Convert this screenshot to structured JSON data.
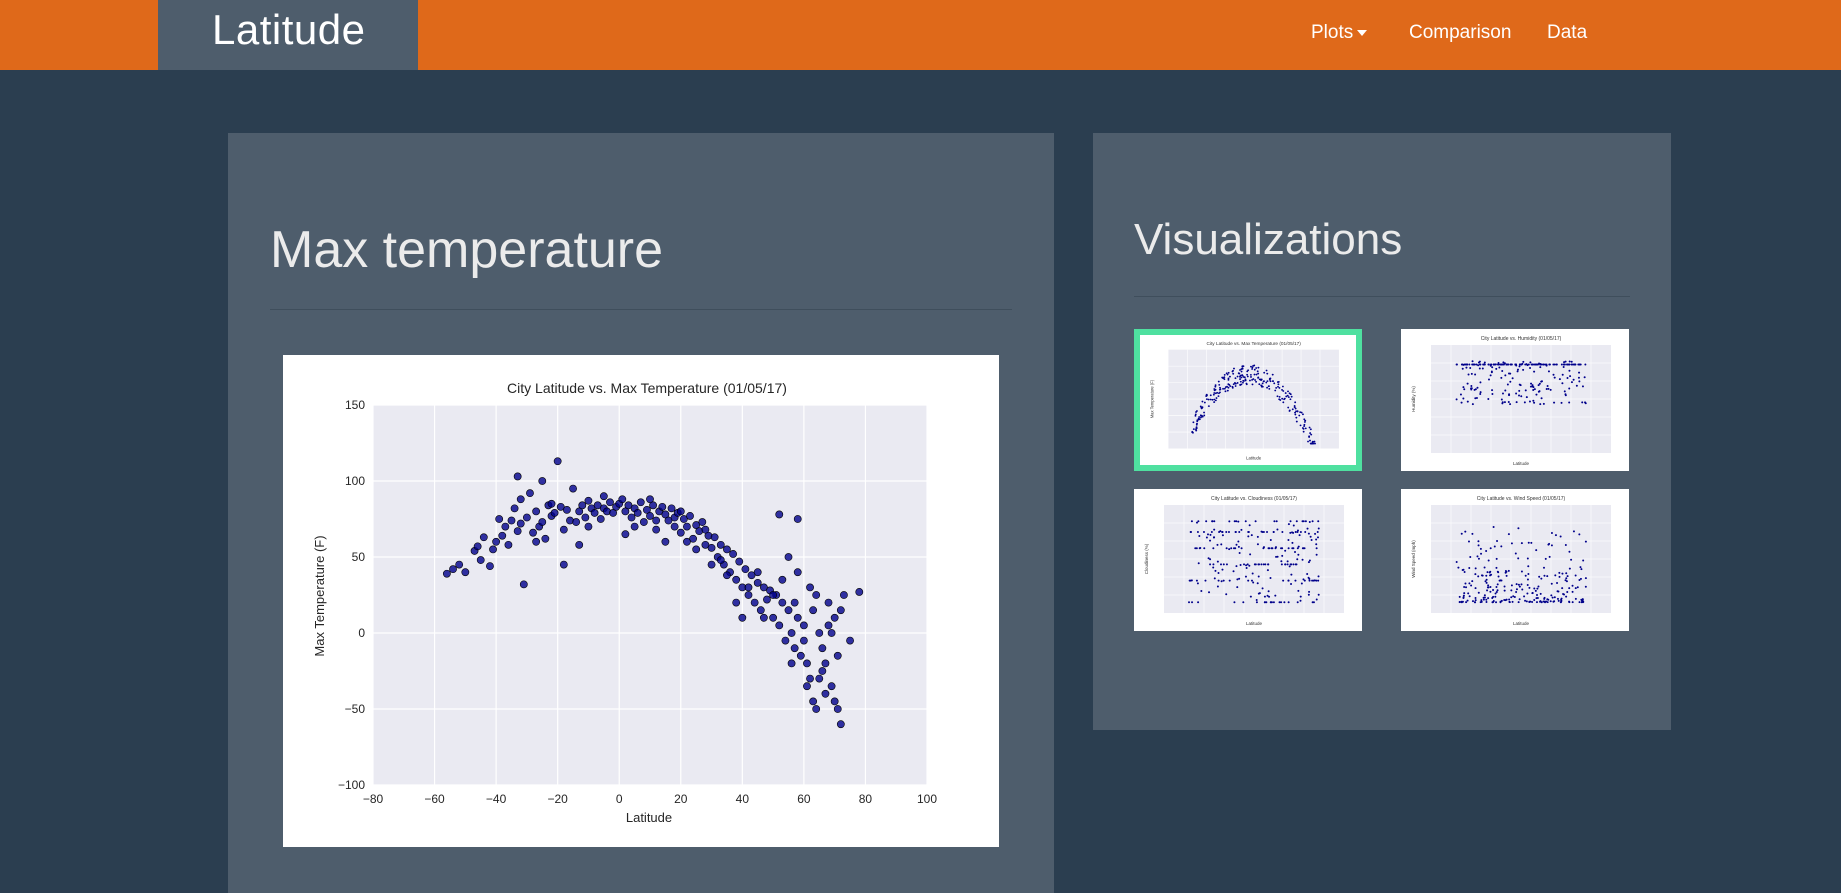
{
  "navbar": {
    "brand": "Latitude",
    "items": [
      {
        "label": "Plots",
        "has_caret": true
      },
      {
        "label": "Comparison"
      },
      {
        "label": "Data"
      }
    ],
    "color": "#df691a"
  },
  "main": {
    "title": "Max temperature"
  },
  "side": {
    "title": "Visualizations",
    "thumbnails": [
      {
        "title": "City Latitude vs. Max Temperature (01/05/17)",
        "xlabel": "Latitude",
        "ylabel": "Max Temperature (F)",
        "active": true
      },
      {
        "title": "City Latitude vs. Humidity (01/05/17)",
        "xlabel": "Latitude",
        "ylabel": "Humidity (%)",
        "active": false
      },
      {
        "title": "City Latitude vs. Cloudiness (01/05/17)",
        "xlabel": "Latitude",
        "ylabel": "Cloudiness (%)",
        "active": false
      },
      {
        "title": "City Latitude vs. Wind Speed (01/05/17)",
        "xlabel": "Latitude",
        "ylabel": "Wind Speed (mph)",
        "active": false
      }
    ]
  },
  "chart_data": {
    "type": "scatter",
    "title": "City Latitude vs. Max Temperature (01/05/17)",
    "xlabel": "Latitude",
    "ylabel": "Max Temperature (F)",
    "xlim": [
      -80,
      100
    ],
    "ylim": [
      -100,
      150
    ],
    "xticks": [
      -80,
      -60,
      -40,
      -20,
      0,
      20,
      40,
      60,
      80,
      100
    ],
    "yticks": [
      -100,
      -50,
      0,
      50,
      100,
      150
    ],
    "xtick_labels": [
      "−80",
      "−60",
      "−40",
      "−20",
      "0",
      "20",
      "40",
      "60",
      "80",
      "100"
    ],
    "ytick_labels": [
      "−100",
      "−50",
      "0",
      "50",
      "100",
      "150"
    ],
    "grid": true,
    "marker_color": "#00008b",
    "background": "#eaeaf2",
    "points": [
      [
        -56,
        39
      ],
      [
        -54,
        42
      ],
      [
        -52,
        45
      ],
      [
        -47,
        54
      ],
      [
        -46,
        57
      ],
      [
        -45,
        48
      ],
      [
        -44,
        63
      ],
      [
        -42,
        44
      ],
      [
        -40,
        60
      ],
      [
        -38,
        64
      ],
      [
        -37,
        70
      ],
      [
        -36,
        58
      ],
      [
        -35,
        74
      ],
      [
        -34,
        82
      ],
      [
        -33,
        67
      ],
      [
        -32,
        72
      ],
      [
        -31,
        32
      ],
      [
        -30,
        76
      ],
      [
        -29,
        92
      ],
      [
        -28,
        66
      ],
      [
        -27,
        80
      ],
      [
        -26,
        70
      ],
      [
        -25,
        73
      ],
      [
        -24,
        62
      ],
      [
        -23,
        84
      ],
      [
        -22,
        77
      ],
      [
        -21,
        79
      ],
      [
        -20,
        113
      ],
      [
        -19,
        83
      ],
      [
        -18,
        45
      ],
      [
        -18,
        68
      ],
      [
        -17,
        81
      ],
      [
        -16,
        74
      ],
      [
        -15,
        95
      ],
      [
        -14,
        73
      ],
      [
        -13,
        80
      ],
      [
        -12,
        84
      ],
      [
        -11,
        76
      ],
      [
        -10,
        87
      ],
      [
        -9,
        82
      ],
      [
        -8,
        79
      ],
      [
        -7,
        84
      ],
      [
        -6,
        75
      ],
      [
        -5,
        82
      ],
      [
        -4,
        80
      ],
      [
        -3,
        86
      ],
      [
        -2,
        79
      ],
      [
        -1,
        83
      ],
      [
        0,
        85
      ],
      [
        1,
        88
      ],
      [
        2,
        80
      ],
      [
        3,
        84
      ],
      [
        4,
        76
      ],
      [
        5,
        82
      ],
      [
        6,
        79
      ],
      [
        7,
        86
      ],
      [
        8,
        73
      ],
      [
        9,
        81
      ],
      [
        10,
        77
      ],
      [
        11,
        84
      ],
      [
        12,
        74
      ],
      [
        13,
        80
      ],
      [
        14,
        83
      ],
      [
        15,
        78
      ],
      [
        16,
        74
      ],
      [
        17,
        82
      ],
      [
        18,
        76
      ],
      [
        19,
        79
      ],
      [
        20,
        66
      ],
      [
        21,
        75
      ],
      [
        22,
        70
      ],
      [
        23,
        77
      ],
      [
        24,
        62
      ],
      [
        25,
        71
      ],
      [
        26,
        67
      ],
      [
        27,
        73
      ],
      [
        28,
        58
      ],
      [
        29,
        64
      ],
      [
        30,
        56
      ],
      [
        31,
        63
      ],
      [
        32,
        50
      ],
      [
        33,
        58
      ],
      [
        34,
        45
      ],
      [
        35,
        55
      ],
      [
        36,
        40
      ],
      [
        37,
        52
      ],
      [
        38,
        35
      ],
      [
        39,
        47
      ],
      [
        40,
        30
      ],
      [
        41,
        42
      ],
      [
        42,
        25
      ],
      [
        43,
        38
      ],
      [
        44,
        20
      ],
      [
        45,
        33
      ],
      [
        46,
        15
      ],
      [
        47,
        30
      ],
      [
        48,
        22
      ],
      [
        49,
        28
      ],
      [
        50,
        10
      ],
      [
        51,
        25
      ],
      [
        52,
        5
      ],
      [
        53,
        20
      ],
      [
        54,
        -5
      ],
      [
        55,
        15
      ],
      [
        56,
        0
      ],
      [
        57,
        -10
      ],
      [
        58,
        10
      ],
      [
        59,
        -15
      ],
      [
        60,
        5
      ],
      [
        61,
        -20
      ],
      [
        62,
        -30
      ],
      [
        63,
        -45
      ],
      [
        64,
        -50
      ],
      [
        65,
        0
      ],
      [
        66,
        -25
      ],
      [
        67,
        -40
      ],
      [
        68,
        5
      ],
      [
        69,
        -35
      ],
      [
        70,
        -45
      ],
      [
        71,
        -50
      ],
      [
        72,
        -60
      ],
      [
        72,
        15
      ],
      [
        73,
        25
      ],
      [
        -50,
        40
      ],
      [
        -41,
        55
      ],
      [
        -39,
        75
      ],
      [
        -33,
        103
      ],
      [
        -25,
        100
      ],
      [
        -22,
        85
      ],
      [
        -10,
        70
      ],
      [
        -5,
        90
      ],
      [
        5,
        70
      ],
      [
        10,
        88
      ],
      [
        15,
        60
      ],
      [
        20,
        80
      ],
      [
        25,
        55
      ],
      [
        30,
        45
      ],
      [
        35,
        38
      ],
      [
        40,
        10
      ],
      [
        45,
        40
      ],
      [
        50,
        25
      ],
      [
        55,
        50
      ],
      [
        56,
        -20
      ],
      [
        58,
        40
      ],
      [
        60,
        -5
      ],
      [
        62,
        30
      ],
      [
        64,
        25
      ],
      [
        66,
        -10
      ],
      [
        68,
        20
      ],
      [
        70,
        10
      ],
      [
        75,
        -5
      ],
      [
        78,
        27
      ],
      [
        52,
        78
      ],
      [
        58,
        75
      ],
      [
        -32,
        88
      ],
      [
        -27,
        60
      ],
      [
        -13,
        58
      ],
      [
        2,
        65
      ],
      [
        12,
        68
      ],
      [
        18,
        70
      ],
      [
        22,
        60
      ],
      [
        28,
        68
      ],
      [
        33,
        48
      ],
      [
        38,
        20
      ],
      [
        42,
        30
      ],
      [
        47,
        10
      ],
      [
        53,
        35
      ],
      [
        57,
        20
      ],
      [
        61,
        -35
      ],
      [
        63,
        15
      ],
      [
        65,
        -30
      ],
      [
        67,
        -20
      ],
      [
        69,
        0
      ],
      [
        71,
        -15
      ]
    ]
  }
}
